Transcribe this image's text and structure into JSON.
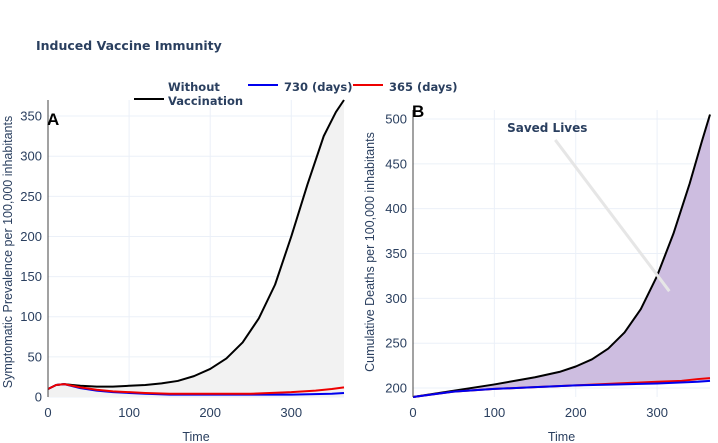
{
  "title": "Induced Vaccine Immunity",
  "legend": [
    {
      "label_line1": "Without",
      "label_line2": "Vaccination",
      "color": "#000000"
    },
    {
      "label_line1": "730 (days)",
      "label_line2": "",
      "color": "#0000ee"
    },
    {
      "label_line1": "365 (days)",
      "label_line2": "",
      "color": "#ee0000"
    }
  ],
  "chart_data": [
    {
      "type": "line",
      "panel_label": "A",
      "xlabel": "Time",
      "ylabel": "Symptomatic Prevalence per 100,000 inhabitants",
      "xlim": [
        0,
        365
      ],
      "ylim": [
        0,
        370
      ],
      "xticks": [
        0,
        100,
        200,
        300
      ],
      "yticks": [
        0,
        50,
        100,
        150,
        200,
        250,
        300,
        350
      ],
      "fill_under_series": "Without Vaccination",
      "fill_color": "#f2f2f2",
      "series": [
        {
          "name": "Without Vaccination",
          "color": "#000000",
          "x": [
            0,
            10,
            20,
            30,
            40,
            60,
            80,
            100,
            120,
            140,
            160,
            180,
            200,
            220,
            240,
            260,
            280,
            300,
            320,
            340,
            355,
            365
          ],
          "y": [
            10,
            15,
            16,
            15,
            14,
            13,
            13,
            14,
            15,
            17,
            20,
            26,
            35,
            48,
            68,
            98,
            140,
            200,
            265,
            325,
            355,
            370
          ]
        },
        {
          "name": "730 (days)",
          "color": "#0000ee",
          "x": [
            0,
            10,
            20,
            40,
            60,
            80,
            100,
            120,
            150,
            200,
            250,
            300,
            350,
            365
          ],
          "y": [
            10,
            15,
            16,
            11,
            8,
            6,
            5,
            4,
            3,
            3,
            3,
            3,
            4,
            5
          ]
        },
        {
          "name": "365 (days)",
          "color": "#ee0000",
          "x": [
            0,
            10,
            20,
            40,
            60,
            80,
            100,
            120,
            150,
            200,
            250,
            300,
            330,
            350,
            365
          ],
          "y": [
            10,
            15,
            16,
            12,
            9,
            7,
            6,
            5,
            4,
            4,
            4,
            6,
            8,
            10,
            12
          ]
        }
      ]
    },
    {
      "type": "area",
      "panel_label": "B",
      "xlabel": "Time",
      "ylabel": "Cumulative Deaths per 100,000 inhabitants",
      "xlim": [
        0,
        365
      ],
      "ylim": [
        190,
        510
      ],
      "xticks": [
        0,
        100,
        200,
        300
      ],
      "yticks": [
        200,
        250,
        300,
        350,
        400,
        450,
        500
      ],
      "fill_color": "#cdbde0",
      "annotation": {
        "text": "Saved Lives",
        "x": 165,
        "y": 490,
        "arrow_x": 315,
        "arrow_y": 308
      },
      "series": [
        {
          "name": "Without Vaccination",
          "color": "#000000",
          "x": [
            0,
            50,
            100,
            150,
            180,
            200,
            220,
            240,
            260,
            280,
            300,
            320,
            340,
            355,
            365
          ],
          "y": [
            190,
            197,
            204,
            212,
            218,
            224,
            232,
            244,
            262,
            288,
            325,
            372,
            428,
            475,
            505
          ]
        },
        {
          "name": "730 (days)",
          "color": "#0000ee",
          "x": [
            0,
            50,
            100,
            150,
            200,
            250,
            300,
            350,
            365
          ],
          "y": [
            190,
            196,
            199,
            201,
            203,
            204,
            205,
            207,
            208
          ]
        },
        {
          "name": "365 (days)",
          "color": "#ee0000",
          "x": [
            0,
            50,
            100,
            150,
            200,
            250,
            300,
            330,
            350,
            365
          ],
          "y": [
            190,
            196,
            199,
            201,
            203,
            205,
            207,
            208,
            210,
            211
          ]
        }
      ]
    }
  ]
}
